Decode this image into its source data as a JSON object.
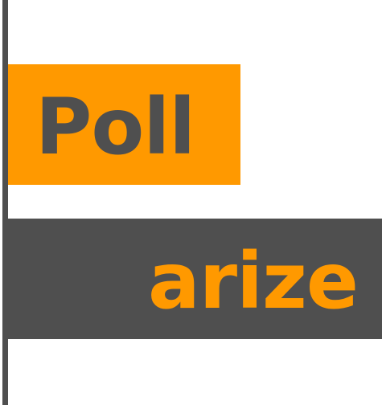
{
  "logo": {
    "top_text": "Poll",
    "bottom_text": "arize",
    "colors": {
      "orange": "#ff9900",
      "dark_gray": "#4f4f4f",
      "background": "#ffffff"
    }
  }
}
